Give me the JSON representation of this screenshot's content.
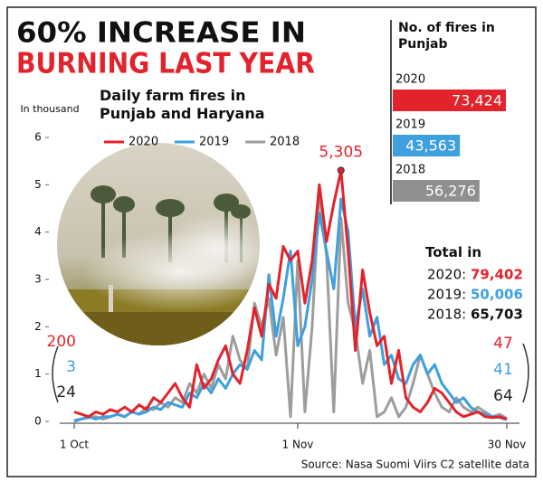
{
  "header": {
    "title_line1": "60% INCREASE IN",
    "title_line2": "BURNING LAST YEAR"
  },
  "chart_data": [
    {
      "type": "line",
      "title": "Daily farm fires in Punjab and Haryana",
      "ylabel": "In thousand",
      "ylim": [
        0,
        6
      ],
      "yticks": [
        0,
        1,
        2,
        3,
        4,
        5,
        6
      ],
      "categories": [
        "1 Oct",
        null,
        null,
        null,
        null,
        null,
        null,
        null,
        null,
        null,
        null,
        null,
        null,
        null,
        null,
        null,
        null,
        null,
        null,
        null,
        null,
        null,
        null,
        null,
        null,
        null,
        null,
        null,
        null,
        null,
        null,
        "1 Nov",
        null,
        null,
        null,
        null,
        null,
        null,
        null,
        null,
        null,
        null,
        null,
        null,
        null,
        null,
        null,
        null,
        null,
        null,
        null,
        null,
        null,
        null,
        null,
        null,
        null,
        null,
        null,
        null,
        "30 Nov"
      ],
      "series": [
        {
          "name": "2020",
          "color": "#e3232c",
          "values": [
            0.2,
            0.15,
            0.1,
            0.2,
            0.15,
            0.25,
            0.2,
            0.3,
            0.2,
            0.35,
            0.25,
            0.5,
            0.4,
            0.6,
            0.8,
            0.5,
            0.3,
            1.2,
            0.7,
            0.9,
            1.3,
            1.6,
            1.0,
            0.8,
            1.5,
            2.4,
            1.8,
            2.9,
            2.6,
            3.7,
            3.4,
            3.6,
            2.5,
            3.4,
            5.0,
            3.8,
            4.6,
            5.305,
            3.6,
            1.5,
            3.2,
            2.3,
            1.6,
            1.8,
            0.8,
            1.5,
            0.5,
            0.3,
            0.2,
            0.4,
            0.7,
            0.6,
            0.4,
            0.2,
            0.1,
            0.15,
            0.2,
            0.1,
            0.08,
            0.1,
            0.047
          ],
          "value_labels": [
            "200",
            null,
            null,
            null,
            null,
            null,
            null,
            null,
            null,
            null,
            null,
            null,
            null,
            null,
            null,
            null,
            null,
            null,
            null,
            null,
            null,
            null,
            null,
            null,
            null,
            null,
            null,
            null,
            null,
            null,
            null,
            null,
            null,
            null,
            null,
            null,
            null,
            "5,305",
            null,
            null,
            null,
            null,
            null,
            null,
            null,
            null,
            null,
            null,
            null,
            null,
            null,
            null,
            null,
            null,
            null,
            null,
            null,
            null,
            null,
            null,
            "47"
          ]
        },
        {
          "name": "2019",
          "color": "#3ea0de",
          "values": [
            0.003,
            0.05,
            0.1,
            0.05,
            0.1,
            0.1,
            0.15,
            0.1,
            0.2,
            0.15,
            0.2,
            0.3,
            0.25,
            0.4,
            0.35,
            0.3,
            0.6,
            0.5,
            0.8,
            0.6,
            0.9,
            0.7,
            1.0,
            1.2,
            1.1,
            1.5,
            1.3,
            3.1,
            1.8,
            2.6,
            3.6,
            1.6,
            2.0,
            3.0,
            4.4,
            3.6,
            2.8,
            4.7,
            4.0,
            2.0,
            2.8,
            1.8,
            2.2,
            1.2,
            1.4,
            0.9,
            0.8,
            1.2,
            1.4,
            1.0,
            1.2,
            0.8,
            0.6,
            0.4,
            0.5,
            0.3,
            0.2,
            0.15,
            0.1,
            0.08,
            0.041
          ],
          "value_labels": [
            "3",
            null,
            null,
            null,
            null,
            null,
            null,
            null,
            null,
            null,
            null,
            null,
            null,
            null,
            null,
            null,
            null,
            null,
            null,
            null,
            null,
            null,
            null,
            null,
            null,
            null,
            null,
            null,
            null,
            null,
            null,
            null,
            null,
            null,
            null,
            null,
            null,
            null,
            null,
            null,
            null,
            null,
            null,
            null,
            null,
            null,
            null,
            null,
            null,
            null,
            null,
            null,
            null,
            null,
            null,
            null,
            null,
            null,
            null,
            null,
            "41"
          ]
        },
        {
          "name": "2018",
          "color": "#9d9d9d",
          "values": [
            0.024,
            0.05,
            0.08,
            0.1,
            0.05,
            0.1,
            0.15,
            0.1,
            0.2,
            0.15,
            0.3,
            0.25,
            0.4,
            0.3,
            0.5,
            0.4,
            0.8,
            0.6,
            1.0,
            0.7,
            1.2,
            0.9,
            1.8,
            1.3,
            1.1,
            2.5,
            2.0,
            2.6,
            1.4,
            2.2,
            0.1,
            3.4,
            0.2,
            2.0,
            4.9,
            3.5,
            0.2,
            4.3,
            2.5,
            1.9,
            0.8,
            1.5,
            0.1,
            0.2,
            0.5,
            0.1,
            0.3,
            0.8,
            1.4,
            1.0,
            0.6,
            0.3,
            0.2,
            0.5,
            0.3,
            0.2,
            0.3,
            0.2,
            0.1,
            0.15,
            0.064
          ],
          "value_labels": [
            "24",
            null,
            null,
            null,
            null,
            null,
            null,
            null,
            null,
            null,
            null,
            null,
            null,
            null,
            null,
            null,
            null,
            null,
            null,
            null,
            null,
            null,
            null,
            null,
            null,
            null,
            null,
            null,
            null,
            null,
            null,
            null,
            null,
            null,
            null,
            null,
            null,
            null,
            null,
            null,
            null,
            null,
            null,
            null,
            null,
            null,
            null,
            null,
            null,
            null,
            null,
            null,
            null,
            null,
            null,
            null,
            null,
            null,
            null,
            null,
            "64"
          ]
        }
      ]
    },
    {
      "type": "bar",
      "orientation": "horizontal",
      "title": "No. of fires in Punjab",
      "categories": [
        "2020",
        "2019",
        "2018"
      ],
      "values": [
        73424,
        43563,
        56276
      ],
      "value_labels": [
        "73,424",
        "43,563",
        "56,276"
      ],
      "colors": [
        "#e3232c",
        "#3ea0de",
        "#8f8f8f"
      ]
    }
  ],
  "totals": {
    "title": "Total in",
    "rows": [
      {
        "label": "2020:",
        "value": "79,402",
        "color": "#e3232c"
      },
      {
        "label": "2019:",
        "value": "50,006",
        "color": "#3ea0de"
      },
      {
        "label": "2018:",
        "value": "65,703",
        "color": "#111111"
      }
    ]
  },
  "source": "Source: Nasa Suomi Viirs C2 satellite data"
}
